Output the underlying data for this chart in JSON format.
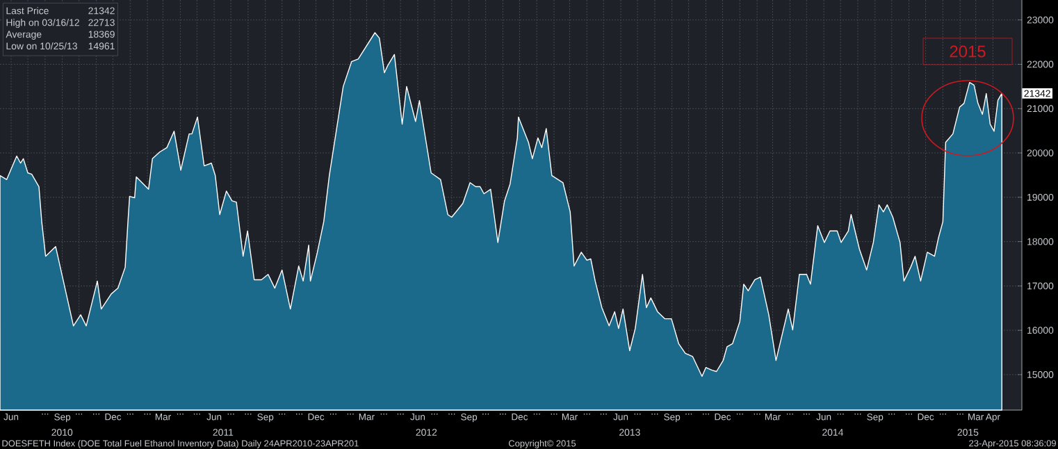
{
  "chart_data": {
    "type": "area",
    "color": "#1b6a8c",
    "grid": true,
    "xlim": [
      "2010-05-12",
      "2015-05-23"
    ],
    "ylim": [
      14200,
      23450
    ],
    "yticks": [
      15000,
      16000,
      17000,
      18000,
      19000,
      20000,
      21000,
      22000,
      23000
    ],
    "xticks": [
      {
        "value": "2010-06",
        "label": "Jun"
      },
      {
        "value": "2010-07",
        "label": null
      },
      {
        "value": "2010-08",
        "label": "..."
      },
      {
        "value": "2010-09",
        "label": "Sep"
      },
      {
        "value": "2010-10",
        "label": "..."
      },
      {
        "value": "2010-11",
        "label": "..."
      },
      {
        "value": "2010-12",
        "label": "Dec"
      },
      {
        "value": "2011-01",
        "label": "..."
      },
      {
        "value": "2011-02",
        "label": "..."
      },
      {
        "value": "2011-03",
        "label": "Mar"
      },
      {
        "value": "2011-04",
        "label": "..."
      },
      {
        "value": "2011-05",
        "label": "..."
      },
      {
        "value": "2011-06",
        "label": "Jun"
      },
      {
        "value": "2011-07",
        "label": "..."
      },
      {
        "value": "2011-08",
        "label": "..."
      },
      {
        "value": "2011-09",
        "label": "Sep"
      },
      {
        "value": "2011-10",
        "label": "..."
      },
      {
        "value": "2011-11",
        "label": "..."
      },
      {
        "value": "2011-12",
        "label": "Dec"
      },
      {
        "value": "2012-01",
        "label": "..."
      },
      {
        "value": "2012-02",
        "label": "..."
      },
      {
        "value": "2012-03",
        "label": "Mar"
      },
      {
        "value": "2012-04",
        "label": "..."
      },
      {
        "value": "2012-05",
        "label": "..."
      },
      {
        "value": "2012-06",
        "label": "Jun"
      },
      {
        "value": "2012-07",
        "label": "..."
      },
      {
        "value": "2012-08",
        "label": "..."
      },
      {
        "value": "2012-09",
        "label": "Sep"
      },
      {
        "value": "2012-10",
        "label": "..."
      },
      {
        "value": "2012-11",
        "label": "..."
      },
      {
        "value": "2012-12",
        "label": "Dec"
      },
      {
        "value": "2013-01",
        "label": "..."
      },
      {
        "value": "2013-02",
        "label": "..."
      },
      {
        "value": "2013-03",
        "label": "Mar"
      },
      {
        "value": "2013-04",
        "label": "..."
      },
      {
        "value": "2013-05",
        "label": "..."
      },
      {
        "value": "2013-06",
        "label": "Jun"
      },
      {
        "value": "2013-07",
        "label": "..."
      },
      {
        "value": "2013-08",
        "label": "..."
      },
      {
        "value": "2013-09",
        "label": "Sep"
      },
      {
        "value": "2013-10",
        "label": "..."
      },
      {
        "value": "2013-11",
        "label": "..."
      },
      {
        "value": "2013-12",
        "label": "Dec"
      },
      {
        "value": "2014-01",
        "label": "..."
      },
      {
        "value": "2014-02",
        "label": "..."
      },
      {
        "value": "2014-03",
        "label": "Mar"
      },
      {
        "value": "2014-04",
        "label": "..."
      },
      {
        "value": "2014-05",
        "label": "..."
      },
      {
        "value": "2014-06",
        "label": "Jun"
      },
      {
        "value": "2014-07",
        "label": "..."
      },
      {
        "value": "2014-08",
        "label": "..."
      },
      {
        "value": "2014-09",
        "label": "Sep"
      },
      {
        "value": "2014-10",
        "label": "..."
      },
      {
        "value": "2014-11",
        "label": "..."
      },
      {
        "value": "2014-12",
        "label": "Dec"
      },
      {
        "value": "2015-01",
        "label": "..."
      },
      {
        "value": "2015-02",
        "label": "..."
      },
      {
        "value": "2015-03",
        "label": "Mar"
      },
      {
        "value": "2015-04",
        "label": "Apr"
      }
    ],
    "x": [
      "2010-05-12",
      "2010-05-24",
      "2010-06-11",
      "2010-06-18",
      "2010-06-23",
      "2010-07-01",
      "2010-07-08",
      "2010-07-21",
      "2010-07-26",
      "2010-08-02",
      "2010-08-20",
      "2010-09-21",
      "2010-10-04",
      "2010-10-14",
      "2010-11-03",
      "2010-11-10",
      "2010-11-28",
      "2010-12-10",
      "2010-12-23",
      "2010-12-28",
      "2010-12-31",
      "2011-01-09",
      "2011-01-12",
      "2011-02-03",
      "2011-02-10",
      "2011-02-23",
      "2011-03-08",
      "2011-03-21",
      "2011-04-02",
      "2011-04-17",
      "2011-04-22",
      "2011-05-02",
      "2011-05-14",
      "2011-05-27",
      "2011-06-03",
      "2011-06-11",
      "2011-06-23",
      "2011-07-03",
      "2011-07-11",
      "2011-07-23",
      "2011-07-31",
      "2011-08-12",
      "2011-08-25",
      "2011-09-06",
      "2011-09-18",
      "2011-10-01",
      "2011-10-16",
      "2011-10-31",
      "2011-11-08",
      "2011-11-18",
      "2011-11-21",
      "2011-12-03",
      "2011-12-15",
      "2011-12-25",
      "2012-01-19",
      "2012-02-03",
      "2012-02-15",
      "2012-03-16",
      "2012-03-24",
      "2012-04-02",
      "2012-04-08",
      "2012-04-20",
      "2012-05-04",
      "2012-05-12",
      "2012-05-28",
      "2012-06-04",
      "2012-06-25",
      "2012-07-12",
      "2012-07-25",
      "2012-08-01",
      "2012-08-21",
      "2012-09-03",
      "2012-09-13",
      "2012-09-21",
      "2012-09-28",
      "2012-10-10",
      "2012-10-23",
      "2012-11-04",
      "2012-11-14",
      "2012-11-27",
      "2012-11-29",
      "2012-12-17",
      "2012-12-24",
      "2013-01-03",
      "2013-01-10",
      "2013-01-18",
      "2013-01-28",
      "2013-02-17",
      "2013-03-02",
      "2013-03-09",
      "2013-03-22",
      "2013-04-01",
      "2013-04-08",
      "2013-04-16",
      "2013-04-28",
      "2013-05-11",
      "2013-05-21",
      "2013-05-28",
      "2013-06-05",
      "2013-06-17",
      "2013-06-27",
      "2013-07-10",
      "2013-07-17",
      "2013-07-25",
      "2013-08-06",
      "2013-08-19",
      "2013-08-31",
      "2013-09-13",
      "2013-09-25",
      "2013-10-08",
      "2013-10-25",
      "2013-11-01",
      "2013-11-12",
      "2013-11-20",
      "2013-12-02",
      "2013-12-09",
      "2013-12-19",
      "2014-01-01",
      "2014-01-08",
      "2014-01-16",
      "2014-01-28",
      "2014-02-07",
      "2014-02-22",
      "2014-03-07",
      "2014-03-19",
      "2014-03-29",
      "2014-04-06",
      "2014-04-18",
      "2014-05-01",
      "2014-05-08",
      "2014-05-21",
      "2014-06-02",
      "2014-06-12",
      "2014-06-25",
      "2014-07-02",
      "2014-07-15",
      "2014-07-20",
      "2014-08-04",
      "2014-08-17",
      "2014-08-29",
      "2014-09-08",
      "2014-09-16",
      "2014-09-23",
      "2014-10-03",
      "2014-10-16",
      "2014-10-23",
      "2014-11-04",
      "2014-11-12",
      "2014-11-22",
      "2014-12-04",
      "2014-12-17",
      "2014-12-24",
      "2015-01-01",
      "2015-01-06",
      "2015-01-19",
      "2015-01-31",
      "2015-02-08",
      "2015-02-18",
      "2015-02-26",
      "2015-03-05",
      "2015-03-13",
      "2015-03-20",
      "2015-03-27",
      "2015-04-03",
      "2015-04-10",
      "2015-04-17"
    ],
    "values": [
      19490,
      19400,
      19930,
      19770,
      19870,
      19550,
      19520,
      19240,
      18450,
      17670,
      17890,
      16100,
      16350,
      16100,
      17110,
      16480,
      16820,
      16950,
      17420,
      18450,
      19020,
      18990,
      19460,
      19180,
      19870,
      20020,
      20120,
      20490,
      19610,
      20430,
      20430,
      20810,
      19710,
      19770,
      19490,
      18610,
      19140,
      18920,
      18890,
      17670,
      18240,
      17140,
      17140,
      17260,
      16950,
      17360,
      16480,
      17450,
      17110,
      17920,
      17110,
      17730,
      18450,
      19490,
      21500,
      22060,
      22120,
      22713,
      22590,
      21810,
      21970,
      22220,
      20650,
      21500,
      20710,
      21180,
      19550,
      19400,
      18610,
      18550,
      18860,
      19330,
      19240,
      19240,
      19080,
      19180,
      17980,
      18920,
      19300,
      20340,
      20810,
      20240,
      19870,
      20340,
      20120,
      20550,
      19490,
      19330,
      18670,
      17450,
      17760,
      17580,
      17610,
      17110,
      16510,
      16100,
      16420,
      16040,
      16480,
      15540,
      16040,
      17260,
      16510,
      16730,
      16420,
      16260,
      16260,
      15700,
      15480,
      15410,
      14961,
      15160,
      15100,
      15070,
      15320,
      15630,
      15700,
      16200,
      17040,
      16890,
      17140,
      17200,
      16350,
      15320,
      15950,
      16480,
      16010,
      17260,
      17260,
      17040,
      18360,
      17980,
      18240,
      18240,
      17980,
      18240,
      18610,
      17830,
      17360,
      17980,
      18830,
      18670,
      18830,
      18550,
      17980,
      17110,
      17420,
      17670,
      17110,
      17760,
      17670,
      18080,
      18450,
      20240,
      20430,
      21030,
      21120,
      21590,
      21530,
      21120,
      20870,
      21340,
      20650,
      20490,
      21190,
      21342
    ],
    "annotations": [
      "Last Price",
      "21342",
      "High on 03/16/12",
      "22713",
      "Average",
      "18369",
      "Low on 10/25/13",
      "14961",
      "2015",
      {
        "text": "21342",
        "y": 21342
      },
      "2010",
      "2011",
      "2012",
      "2013",
      "2014",
      "2015",
      "DOESFETH Index (DOE Total Fuel Ethanol Inventory Data)  Daily 24APR2010-23APR201",
      "Copyright© 2015",
      "23-Apr-2015 08:36:09"
    ]
  }
}
